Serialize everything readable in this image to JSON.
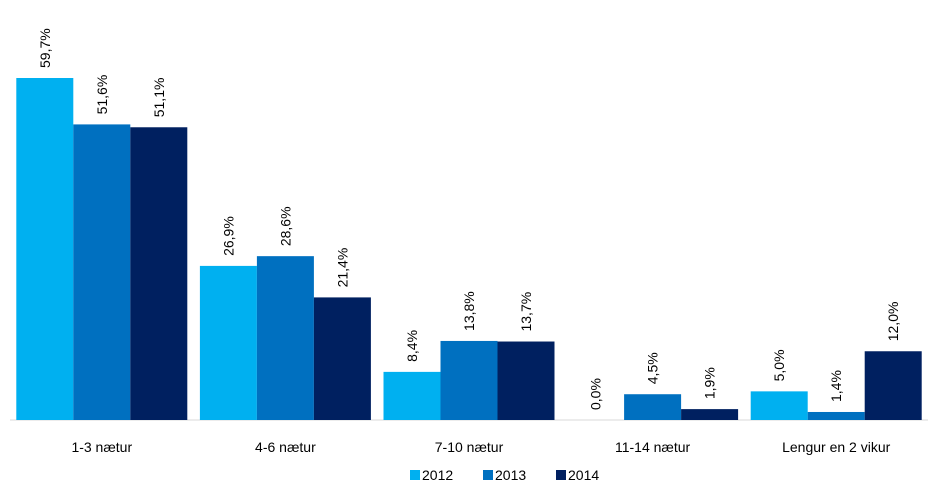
{
  "chart_data": {
    "type": "bar",
    "categories": [
      "1-3 nætur",
      "4-6 nætur",
      "7-10 nætur",
      "11-14 nætur",
      "Lengur en 2 vikur"
    ],
    "series": [
      {
        "name": "2012",
        "color": "#00b0f0",
        "values": [
          59.7,
          26.9,
          8.4,
          0.0,
          5.0
        ],
        "value_labels": [
          "59,7%",
          "26,9%",
          "8,4%",
          "0,0%",
          "5,0%"
        ]
      },
      {
        "name": "2013",
        "color": "#0070c0",
        "values": [
          51.6,
          28.6,
          13.8,
          4.5,
          1.4
        ],
        "value_labels": [
          "51,6%",
          "28,6%",
          "13,8%",
          "4,5%",
          "1,4%"
        ]
      },
      {
        "name": "2014",
        "color": "#002060",
        "values": [
          51.1,
          21.4,
          13.7,
          1.9,
          12.0
        ],
        "value_labels": [
          "51,1%",
          "21,4%",
          "13,7%",
          "1,9%",
          "12,0%"
        ]
      }
    ],
    "legend": "bottom"
  }
}
